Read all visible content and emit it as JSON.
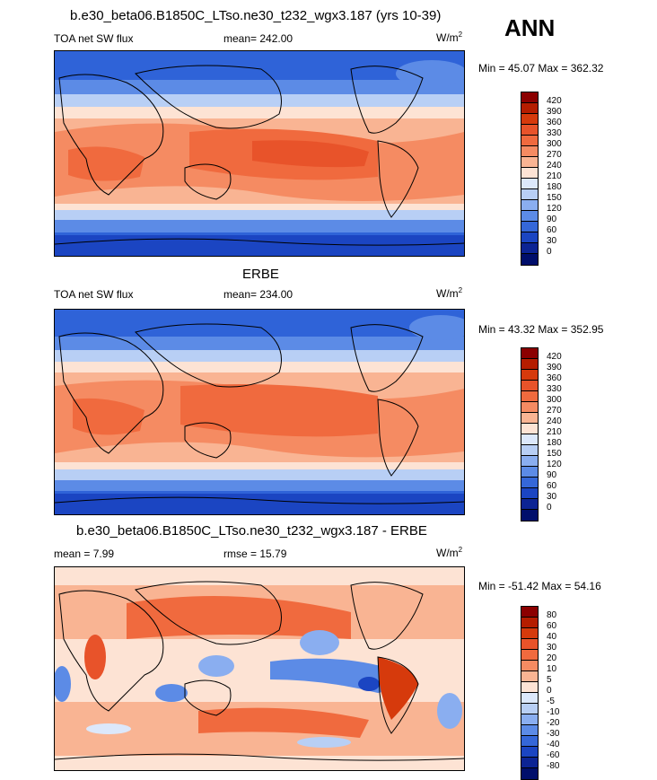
{
  "header": {
    "title": "b.e30_beta06.B1850C_LTso.ne30_t232_wgx3.187 (yrs 10-39)",
    "season": "ANN"
  },
  "panels": [
    {
      "title": "",
      "left_label": "TOA net SW flux",
      "center_label": "mean= 242.00",
      "units": "W/m",
      "units_sup": "2",
      "minmax": "Min =  45.07 Max = 362.32",
      "levels": [
        "420",
        "390",
        "360",
        "330",
        "300",
        "270",
        "240",
        "210",
        "180",
        "150",
        "120",
        "90",
        "60",
        "30",
        "0"
      ],
      "colors": [
        "#8b0000",
        "#b51d00",
        "#d63a0c",
        "#e8532a",
        "#f06a3e",
        "#f58b62",
        "#f9b493",
        "#fde3d4",
        "#dce8fb",
        "#b8cff5",
        "#8aaef0",
        "#5c8be6",
        "#3567d8",
        "#1b45c2",
        "#0c2494",
        "#000e6b"
      ]
    },
    {
      "title": "ERBE",
      "left_label": "TOA net SW flux",
      "center_label": "mean= 234.00",
      "units": "W/m",
      "units_sup": "2",
      "minmax": "Min =  43.32 Max = 352.95",
      "levels": [
        "420",
        "390",
        "360",
        "330",
        "300",
        "270",
        "240",
        "210",
        "180",
        "150",
        "120",
        "90",
        "60",
        "30",
        "0"
      ],
      "colors": [
        "#8b0000",
        "#b51d00",
        "#d63a0c",
        "#e8532a",
        "#f06a3e",
        "#f58b62",
        "#f9b493",
        "#fde3d4",
        "#dce8fb",
        "#b8cff5",
        "#8aaef0",
        "#5c8be6",
        "#3567d8",
        "#1b45c2",
        "#0c2494",
        "#000e6b"
      ]
    },
    {
      "title": "b.e30_beta06.B1850C_LTso.ne30_t232_wgx3.187 - ERBE",
      "left_label": "mean =   7.99",
      "center_label": "rmse =  15.79",
      "units": "W/m",
      "units_sup": "2",
      "minmax": "Min = -51.42 Max =  54.16",
      "levels": [
        "80",
        "60",
        "40",
        "30",
        "20",
        "10",
        "5",
        "0",
        "-5",
        "-10",
        "-20",
        "-30",
        "-40",
        "-60",
        "-80"
      ],
      "colors": [
        "#8b0000",
        "#b51d00",
        "#d63a0c",
        "#e8532a",
        "#f06a3e",
        "#f58b62",
        "#f9b493",
        "#fde3d4",
        "#dce8fb",
        "#b8cff5",
        "#8aaef0",
        "#5c8be6",
        "#3567d8",
        "#1b45c2",
        "#0c2494",
        "#000e6b"
      ]
    }
  ]
}
